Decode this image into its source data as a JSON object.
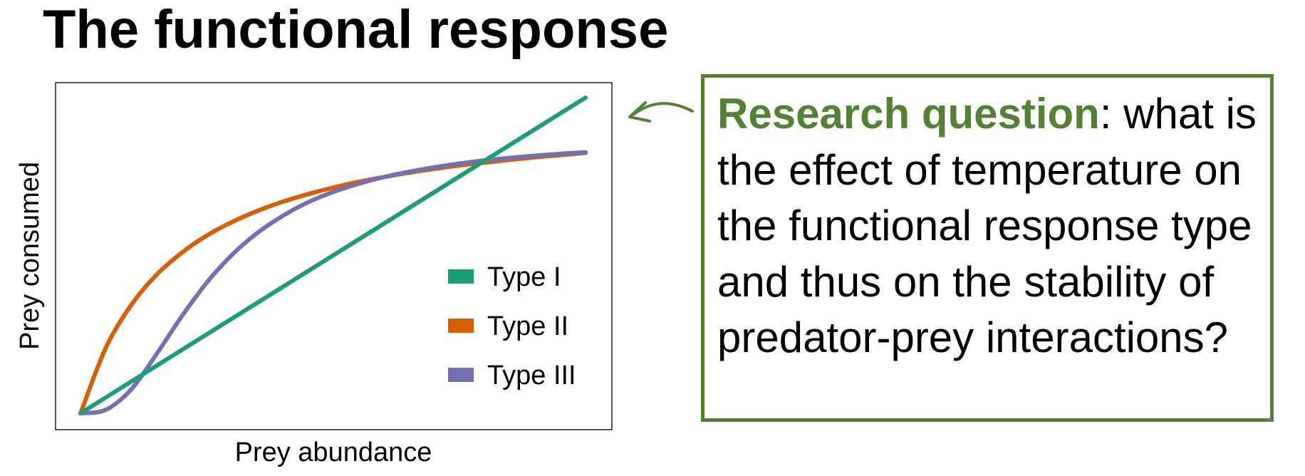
{
  "slide": {
    "title": "The functional response"
  },
  "callout": {
    "label": "Research question",
    "text": ": what is the effect of temperature on the functional response type and thus on the stability of predator-prey interactions?",
    "accent_color": "#548235"
  },
  "chart_data": {
    "type": "line",
    "title": "",
    "xlabel": "Prey abundance",
    "ylabel": "Prey consumed",
    "xlim": [
      0,
      10
    ],
    "ylim": [
      0,
      10
    ],
    "ticks": "none",
    "grid": false,
    "legend_position": "lower-right",
    "series": [
      {
        "name": "Type I",
        "color": "#1b9e77",
        "x": [
          0,
          10
        ],
        "y": [
          0,
          10
        ]
      },
      {
        "name": "Type II",
        "color": "#d95f02",
        "x": [
          0,
          0.5,
          1,
          1.5,
          2,
          2.5,
          3,
          3.5,
          4,
          4.5,
          5,
          5.5,
          6,
          6.5,
          7,
          7.5,
          8,
          8.5,
          9,
          9.5,
          10
        ],
        "y": [
          0,
          2.07,
          3.42,
          4.38,
          5.08,
          5.63,
          6.06,
          6.41,
          6.7,
          6.94,
          7.15,
          7.33,
          7.48,
          7.62,
          7.74,
          7.85,
          7.94,
          8.03,
          8.11,
          8.18,
          8.25
        ]
      },
      {
        "name": "Type III",
        "color": "#7570b3",
        "x": [
          0,
          0.5,
          1,
          1.5,
          2,
          2.5,
          3,
          3.5,
          4,
          4.5,
          5,
          5.5,
          6,
          6.5,
          7,
          7.5,
          8,
          8.5,
          9,
          9.5,
          10
        ],
        "y": [
          0,
          0.11,
          0.75,
          1.86,
          3.06,
          4.14,
          5.02,
          5.71,
          6.25,
          6.68,
          7.01,
          7.27,
          7.48,
          7.65,
          7.79,
          7.91,
          8.01,
          8.09,
          8.16,
          8.22,
          8.27
        ]
      }
    ]
  }
}
